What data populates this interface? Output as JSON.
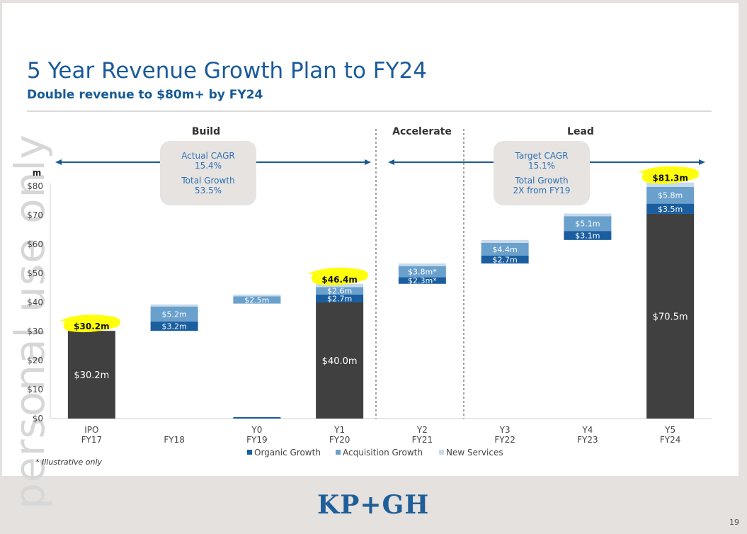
{
  "title": "5 Year Revenue Growth Plan to FY24",
  "subtitle": "Double revenue to $80m+ by FY24",
  "watermark": "personal use only",
  "footnote": "* Illustrative only",
  "logo": "KP+GH",
  "page_number": "19",
  "phases": [
    {
      "label": "Build"
    },
    {
      "label": "Accelerate"
    },
    {
      "label": "Lead"
    }
  ],
  "info_boxes": {
    "build": [
      "Actual CAGR",
      "15.4%",
      "Total Growth",
      "53.5%"
    ],
    "lead": [
      "Target CAGR",
      "15.1%",
      "Total Growth",
      "2X from FY19"
    ]
  },
  "colors": {
    "base": "#404040",
    "organic": "#1a5ea0",
    "acquisition": "#6aa0cc",
    "new_services": "#c7dbeb",
    "accent_text": "#2f70b4",
    "highlight": "#ffff00"
  },
  "chart_data": {
    "type": "bar",
    "stacked": true,
    "y_unit_label": "m",
    "ylim": [
      0,
      80
    ],
    "yticks": [
      "$0",
      "$10",
      "$20",
      "$30",
      "$40",
      "$50",
      "$60",
      "$70",
      "$80"
    ],
    "categories": [
      {
        "top": "IPO",
        "bottom": "FY17"
      },
      {
        "top": "",
        "bottom": "FY18"
      },
      {
        "top": "Y0",
        "bottom": "FY19"
      },
      {
        "top": "Y1",
        "bottom": "FY20"
      },
      {
        "top": "Y2",
        "bottom": "FY21"
      },
      {
        "top": "Y3",
        "bottom": "FY22"
      },
      {
        "top": "Y4",
        "bottom": "FY23"
      },
      {
        "top": "Y5",
        "bottom": "FY24"
      }
    ],
    "bars": [
      {
        "base": 30.2,
        "base_label": "$30.2m",
        "total_label": "$30.2m",
        "highlight": true,
        "segments": []
      },
      {
        "base": 30.2,
        "floating": true,
        "segments": [
          {
            "series": "organic",
            "value": 3.2,
            "label": "$3.2m"
          },
          {
            "series": "acquisition",
            "value": 5.2,
            "label": "$5.2m"
          },
          {
            "series": "new_services",
            "value": 0.7,
            "label": ""
          }
        ]
      },
      {
        "base": 39.6,
        "floating": true,
        "zero_line": true,
        "segments": [
          {
            "series": "acquisition",
            "value": 2.5,
            "label": "$2.5m"
          },
          {
            "series": "new_services",
            "value": 0.6,
            "label": ""
          }
        ]
      },
      {
        "base": 40.0,
        "base_label": "$40.0m",
        "total_label": "$46.4m",
        "highlight": true,
        "segments": [
          {
            "series": "organic",
            "value": 2.7,
            "label": "$2.7m"
          },
          {
            "series": "acquisition",
            "value": 2.6,
            "label": "$2.6m"
          },
          {
            "series": "new_services",
            "value": 1.1,
            "label": ""
          }
        ]
      },
      {
        "base": 46.4,
        "floating": true,
        "segments": [
          {
            "series": "organic",
            "value": 2.3,
            "label": "$2.3m*"
          },
          {
            "series": "acquisition",
            "value": 3.8,
            "label": "$3.8m*"
          },
          {
            "series": "new_services",
            "value": 0.9,
            "label": ""
          }
        ]
      },
      {
        "base": 53.4,
        "floating": true,
        "segments": [
          {
            "series": "organic",
            "value": 2.7,
            "label": "$2.7m"
          },
          {
            "series": "acquisition",
            "value": 4.4,
            "label": "$4.4m"
          },
          {
            "series": "new_services",
            "value": 1.0,
            "label": ""
          }
        ]
      },
      {
        "base": 61.5,
        "floating": true,
        "segments": [
          {
            "series": "organic",
            "value": 3.1,
            "label": "$3.1m"
          },
          {
            "series": "acquisition",
            "value": 5.1,
            "label": "$5.1m"
          },
          {
            "series": "new_services",
            "value": 0.9,
            "label": ""
          }
        ]
      },
      {
        "base": 70.5,
        "base_label": "$70.5m",
        "total_label": "$81.3m",
        "highlight": true,
        "segments": [
          {
            "series": "organic",
            "value": 3.5,
            "label": "$3.5m"
          },
          {
            "series": "acquisition",
            "value": 5.8,
            "label": "$5.8m"
          },
          {
            "series": "new_services",
            "value": 1.5,
            "label": ""
          }
        ]
      }
    ],
    "legend": [
      {
        "series": "organic",
        "name": "Organic Growth"
      },
      {
        "series": "acquisition",
        "name": "Acquisition Growth"
      },
      {
        "series": "new_services",
        "name": "New Services"
      }
    ],
    "legend_position": "bottom-center"
  }
}
